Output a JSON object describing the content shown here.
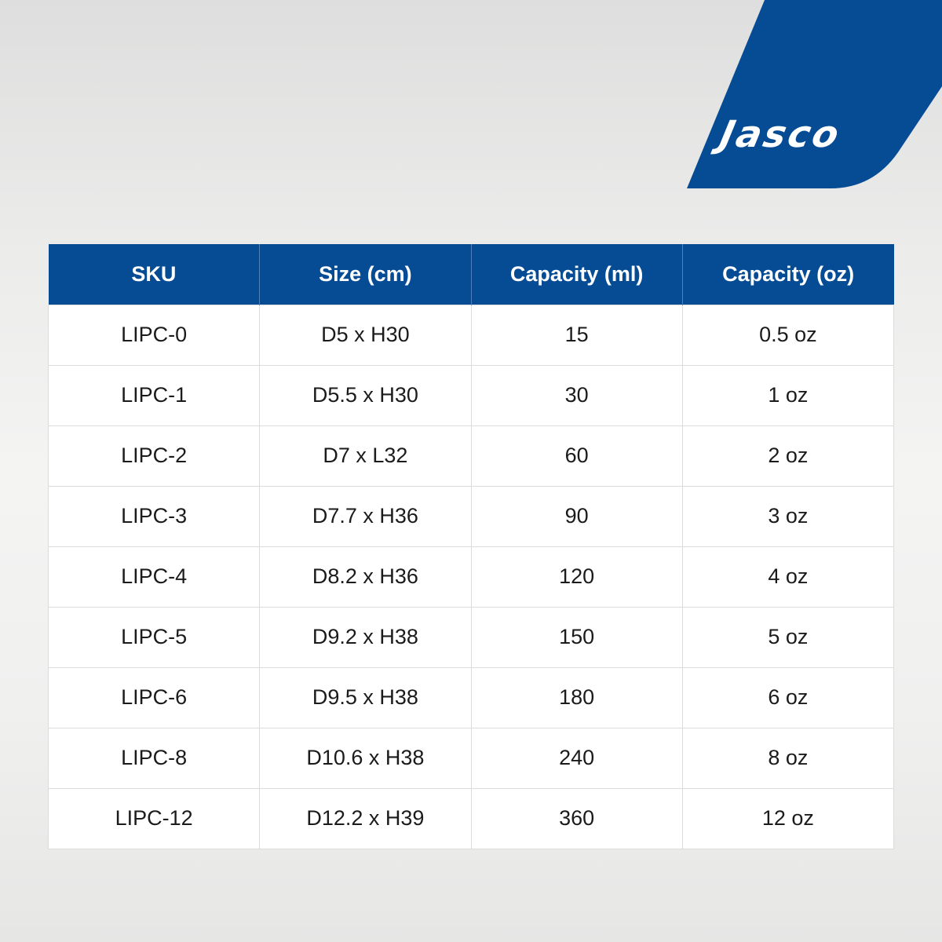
{
  "brand": {
    "logo_text": "Jasco",
    "color": "#054c95"
  },
  "table": {
    "headers": [
      "SKU",
      "Size (cm)",
      "Capacity (ml)",
      "Capacity (oz)"
    ],
    "rows": [
      [
        "LIPC-0",
        "D5 x H30",
        "15",
        "0.5 oz"
      ],
      [
        "LIPC-1",
        "D5.5 x H30",
        "30",
        "1 oz"
      ],
      [
        "LIPC-2",
        "D7 x L32",
        "60",
        "2 oz"
      ],
      [
        "LIPC-3",
        "D7.7 x H36",
        "90",
        "3 oz"
      ],
      [
        "LIPC-4",
        "D8.2 x H36",
        "120",
        "4 oz"
      ],
      [
        "LIPC-5",
        "D9.2 x H38",
        "150",
        "5 oz"
      ],
      [
        "LIPC-6",
        "D9.5 x H38",
        "180",
        "6 oz"
      ],
      [
        "LIPC-8",
        "D10.6 x H38",
        "240",
        "8 oz"
      ],
      [
        "LIPC-12",
        "D12.2 x H39",
        "360",
        "12 oz"
      ]
    ]
  }
}
